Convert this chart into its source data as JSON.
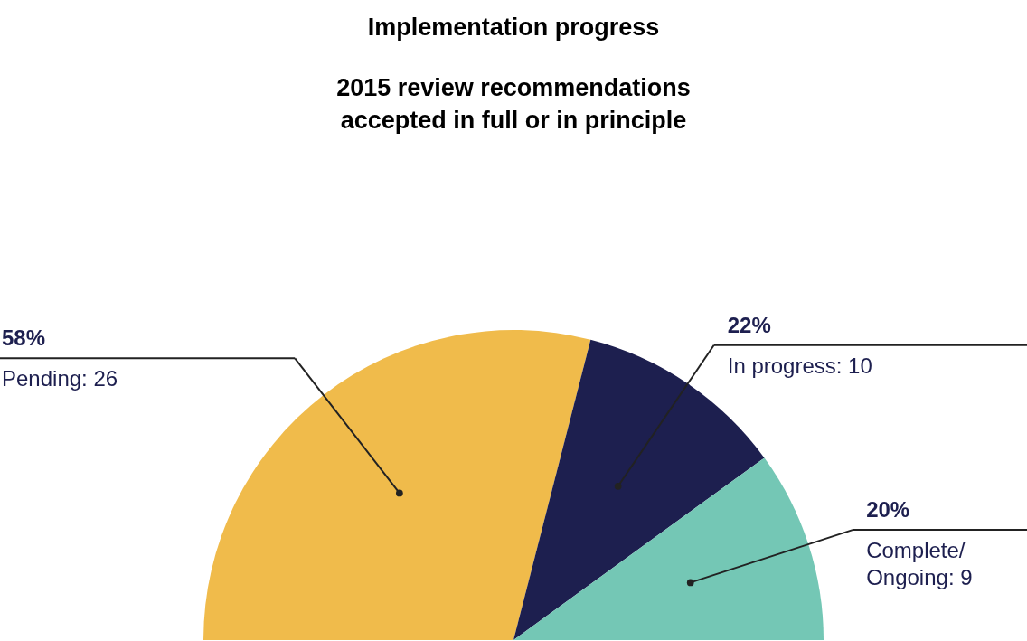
{
  "chart_data": {
    "type": "pie",
    "title": "Implementation progress",
    "subtitle": "2015 review recommendations\naccepted in full or in principle",
    "categories": [
      "Pending: 26",
      "In progress: 10",
      "Complete/\nOngoing: 9"
    ],
    "values": [
      58,
      22,
      20
    ],
    "value_labels": [
      "58%",
      "22%",
      "20%"
    ],
    "colors": [
      "#f0bb4b",
      "#1d1f4f",
      "#74c7b5"
    ],
    "legend": false
  }
}
